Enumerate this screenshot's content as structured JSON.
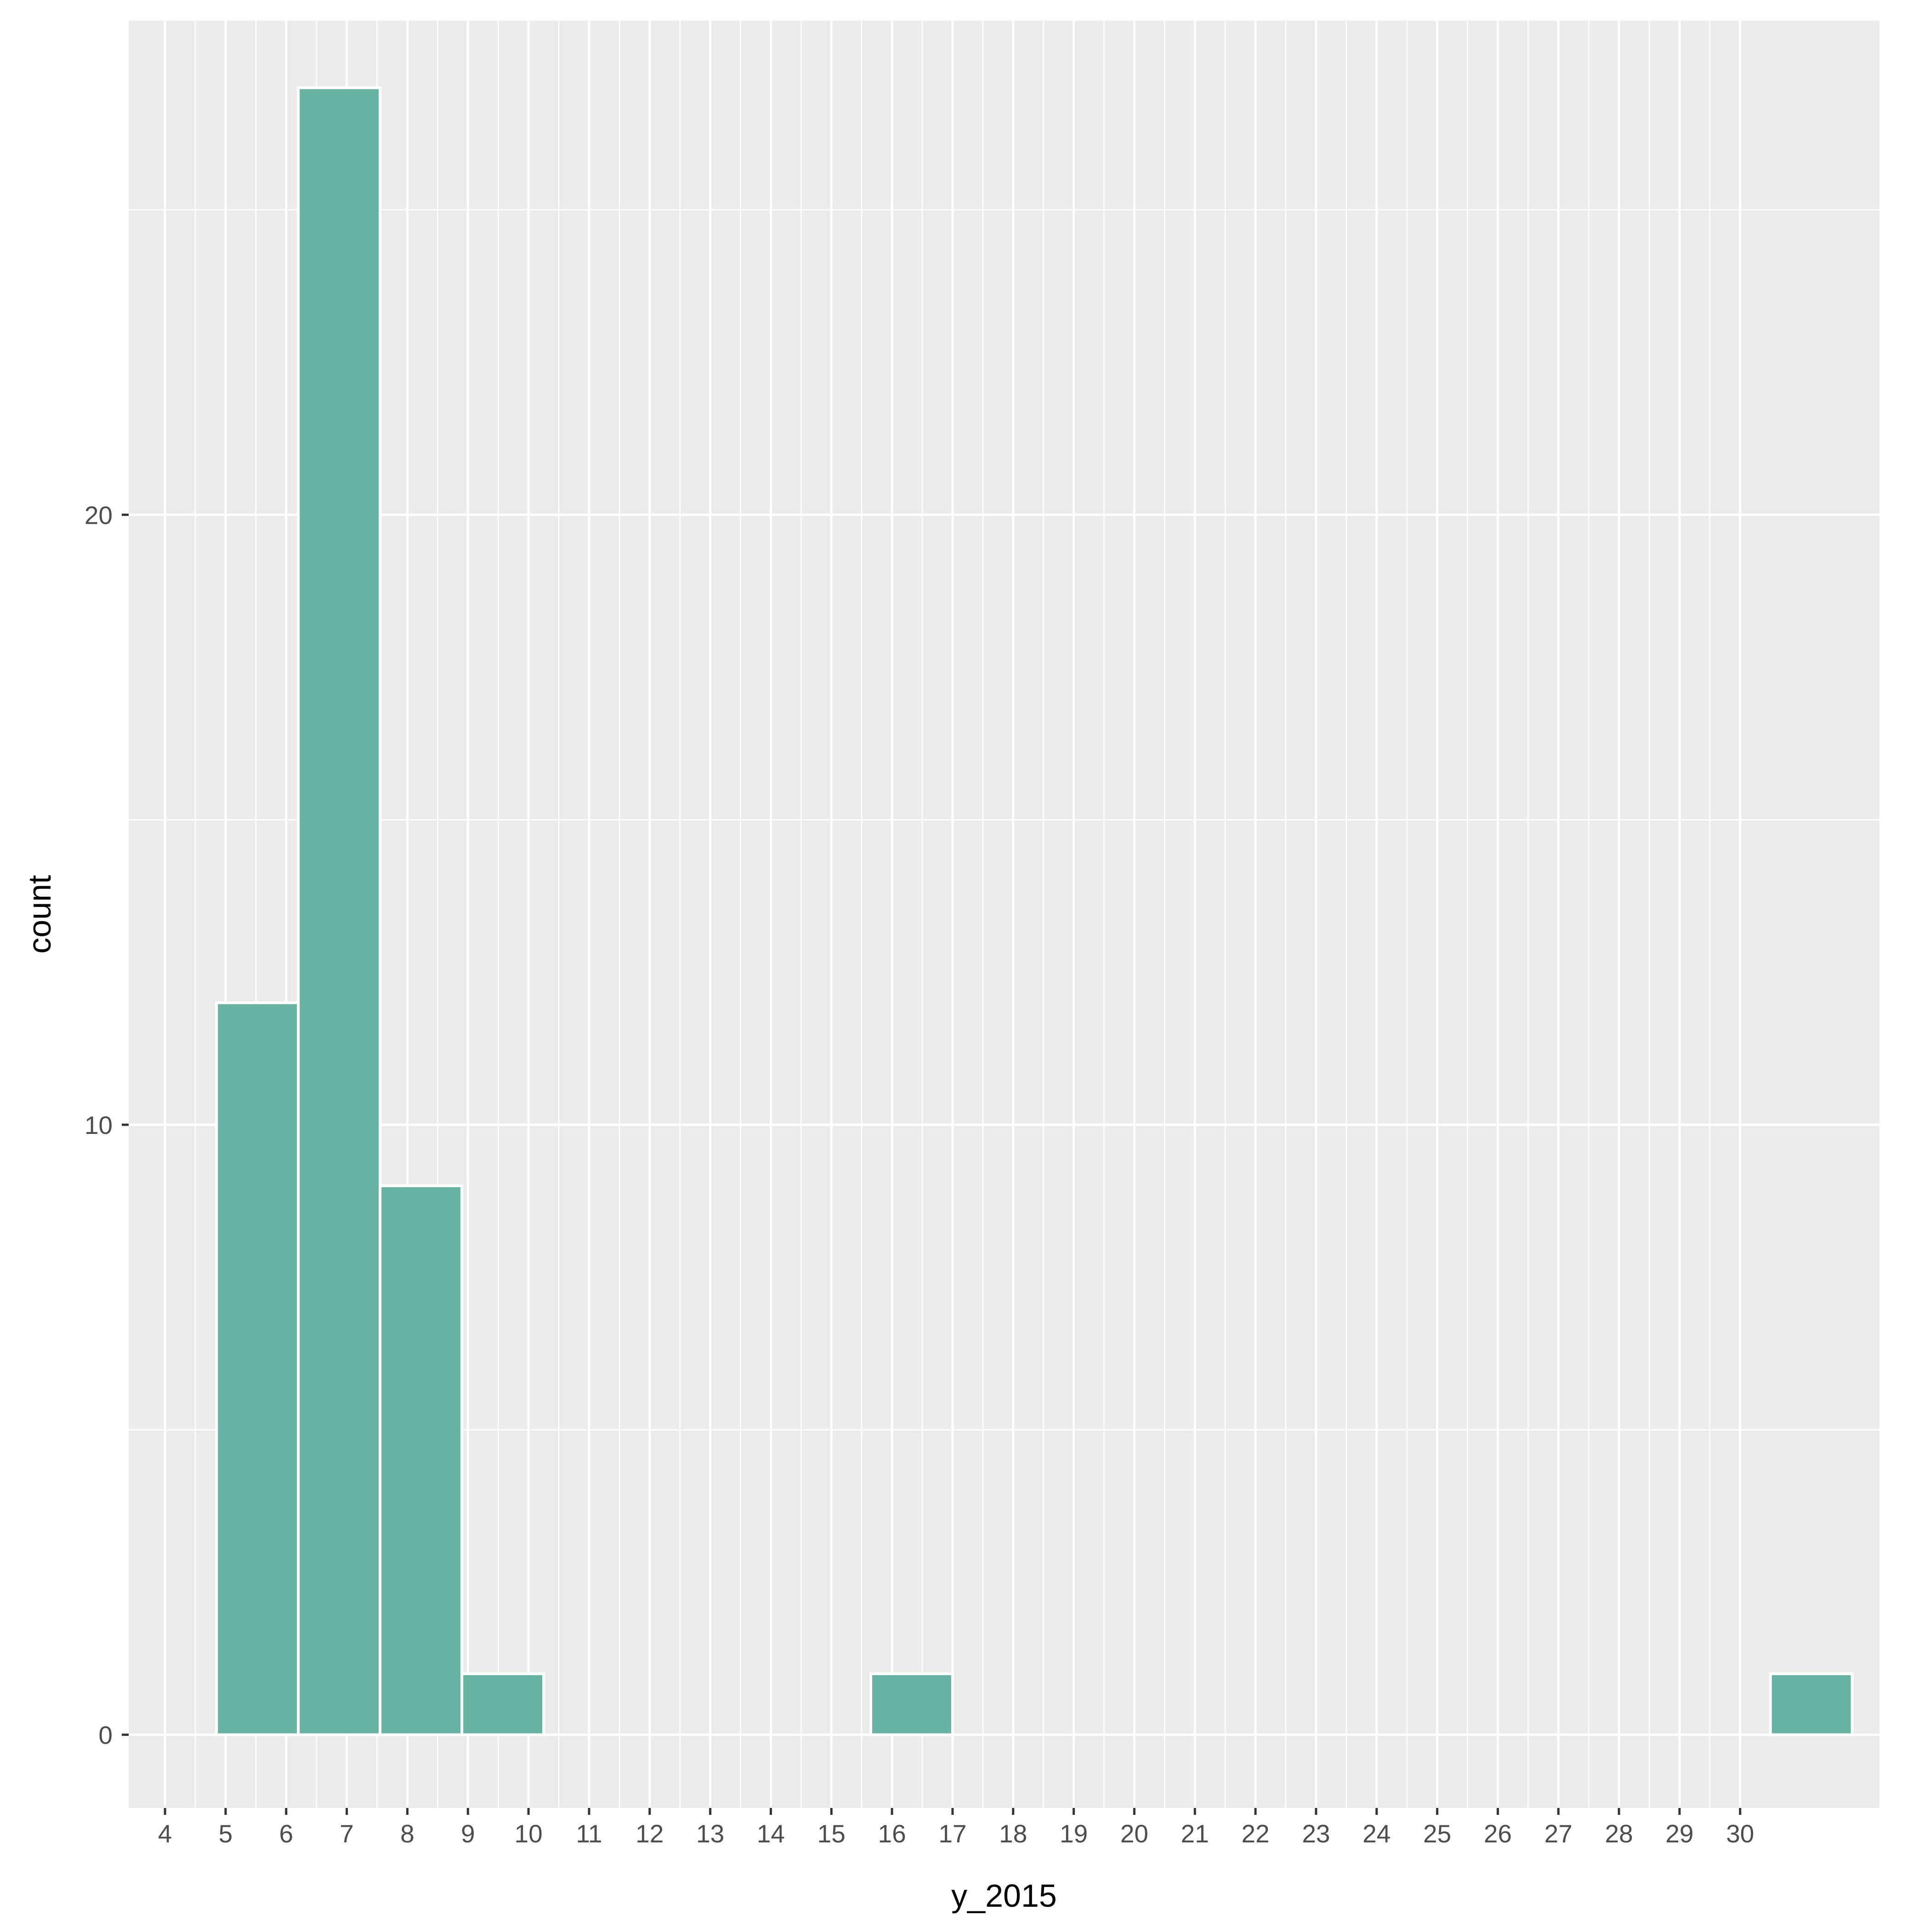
{
  "chart_data": {
    "type": "bar",
    "subtype": "histogram",
    "xlabel": "y_2015",
    "ylabel": "count",
    "x_ticks": [
      4,
      5,
      6,
      7,
      8,
      9,
      10,
      11,
      12,
      13,
      14,
      15,
      16,
      17,
      18,
      19,
      20,
      21,
      22,
      23,
      24,
      25,
      26,
      27,
      28,
      29,
      30
    ],
    "y_ticks": [
      0,
      10,
      20
    ],
    "xlim": [
      3.4,
      32.3
    ],
    "ylim": [
      -1.2,
      28.1
    ],
    "bins": [
      {
        "x0": 4.85,
        "x1": 6.2,
        "count": 12
      },
      {
        "x0": 6.2,
        "x1": 7.55,
        "count": 27
      },
      {
        "x0": 7.55,
        "x1": 8.9,
        "count": 9
      },
      {
        "x0": 8.9,
        "x1": 10.25,
        "count": 1
      },
      {
        "x0": 10.25,
        "x1": 11.6,
        "count": 0
      },
      {
        "x0": 11.6,
        "x1": 12.95,
        "count": 0
      },
      {
        "x0": 12.95,
        "x1": 14.3,
        "count": 0
      },
      {
        "x0": 14.3,
        "x1": 15.65,
        "count": 0
      },
      {
        "x0": 15.65,
        "x1": 17.0,
        "count": 1
      },
      {
        "x0": 17.0,
        "x1": 18.35,
        "count": 0
      },
      {
        "x0": 18.35,
        "x1": 19.7,
        "count": 0
      },
      {
        "x0": 19.7,
        "x1": 21.05,
        "count": 0
      },
      {
        "x0": 21.05,
        "x1": 22.4,
        "count": 0
      },
      {
        "x0": 22.4,
        "x1": 23.75,
        "count": 0
      },
      {
        "x0": 23.75,
        "x1": 25.1,
        "count": 0
      },
      {
        "x0": 25.1,
        "x1": 26.45,
        "count": 0
      },
      {
        "x0": 26.45,
        "x1": 27.8,
        "count": 0
      },
      {
        "x0": 27.8,
        "x1": 29.15,
        "count": 0
      },
      {
        "x0": 29.15,
        "x1": 30.5,
        "count": 0
      },
      {
        "x0": 30.5,
        "x1": 31.85,
        "count": 1
      }
    ],
    "grid": true,
    "colors": {
      "bar_fill": "#69b3a2",
      "bar_outline": "#ffffff",
      "panel_background": "#ebebeb",
      "grid_line": "#ffffff",
      "tick_label": "#4d4d4d",
      "axis_title": "#000000"
    }
  }
}
